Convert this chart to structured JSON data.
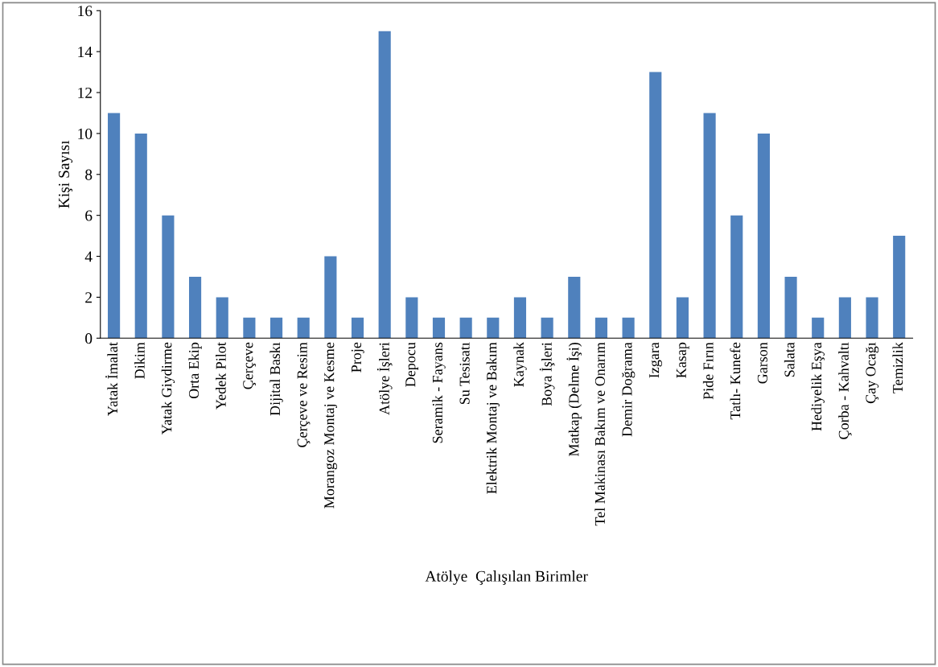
{
  "chart_data": {
    "type": "bar",
    "xlabel": "Atölye  Çalışılan Birimler",
    "ylabel": "Kişi Sayısı",
    "categories": [
      "Yatak İmalat",
      "Dikim",
      "Yatak Giydirme",
      "Orta Ekip",
      "Yedek Pilot",
      "Çerçeve",
      "Dijital Baskı",
      "Çerçeve ve Resim",
      "Morangoz Montaj ve Kesme",
      "Proje",
      "Atölye İşleri",
      "Depocu",
      "Seramik - Fayans",
      "Su Tesisatı",
      "Elektrik Montaj ve Bakım",
      "Kaynak",
      "Boya İşleri",
      "Matkap (Delme İşi)",
      "Tel Makinası Bakım ve Onarım",
      "Demir Doğrama",
      "Izgara",
      "Kasap",
      "Pide Fırın",
      "Tatlı- Kunefe",
      "Garson",
      "Salata",
      "Hediyelik Eşya",
      "Çorba - Kahvaltı",
      "Çay Ocağı",
      "Temizlik"
    ],
    "values": [
      11,
      10,
      6,
      3,
      2,
      1,
      1,
      1,
      4,
      1,
      15,
      2,
      1,
      1,
      1,
      2,
      1,
      3,
      1,
      1,
      13,
      2,
      11,
      6,
      10,
      3,
      1,
      2,
      2,
      5
    ],
    "color": "#4f81bd",
    "ylim": [
      0,
      16
    ],
    "yticks": [
      0,
      2,
      4,
      6,
      8,
      10,
      12,
      14,
      16
    ],
    "grid": false,
    "legend": false
  }
}
